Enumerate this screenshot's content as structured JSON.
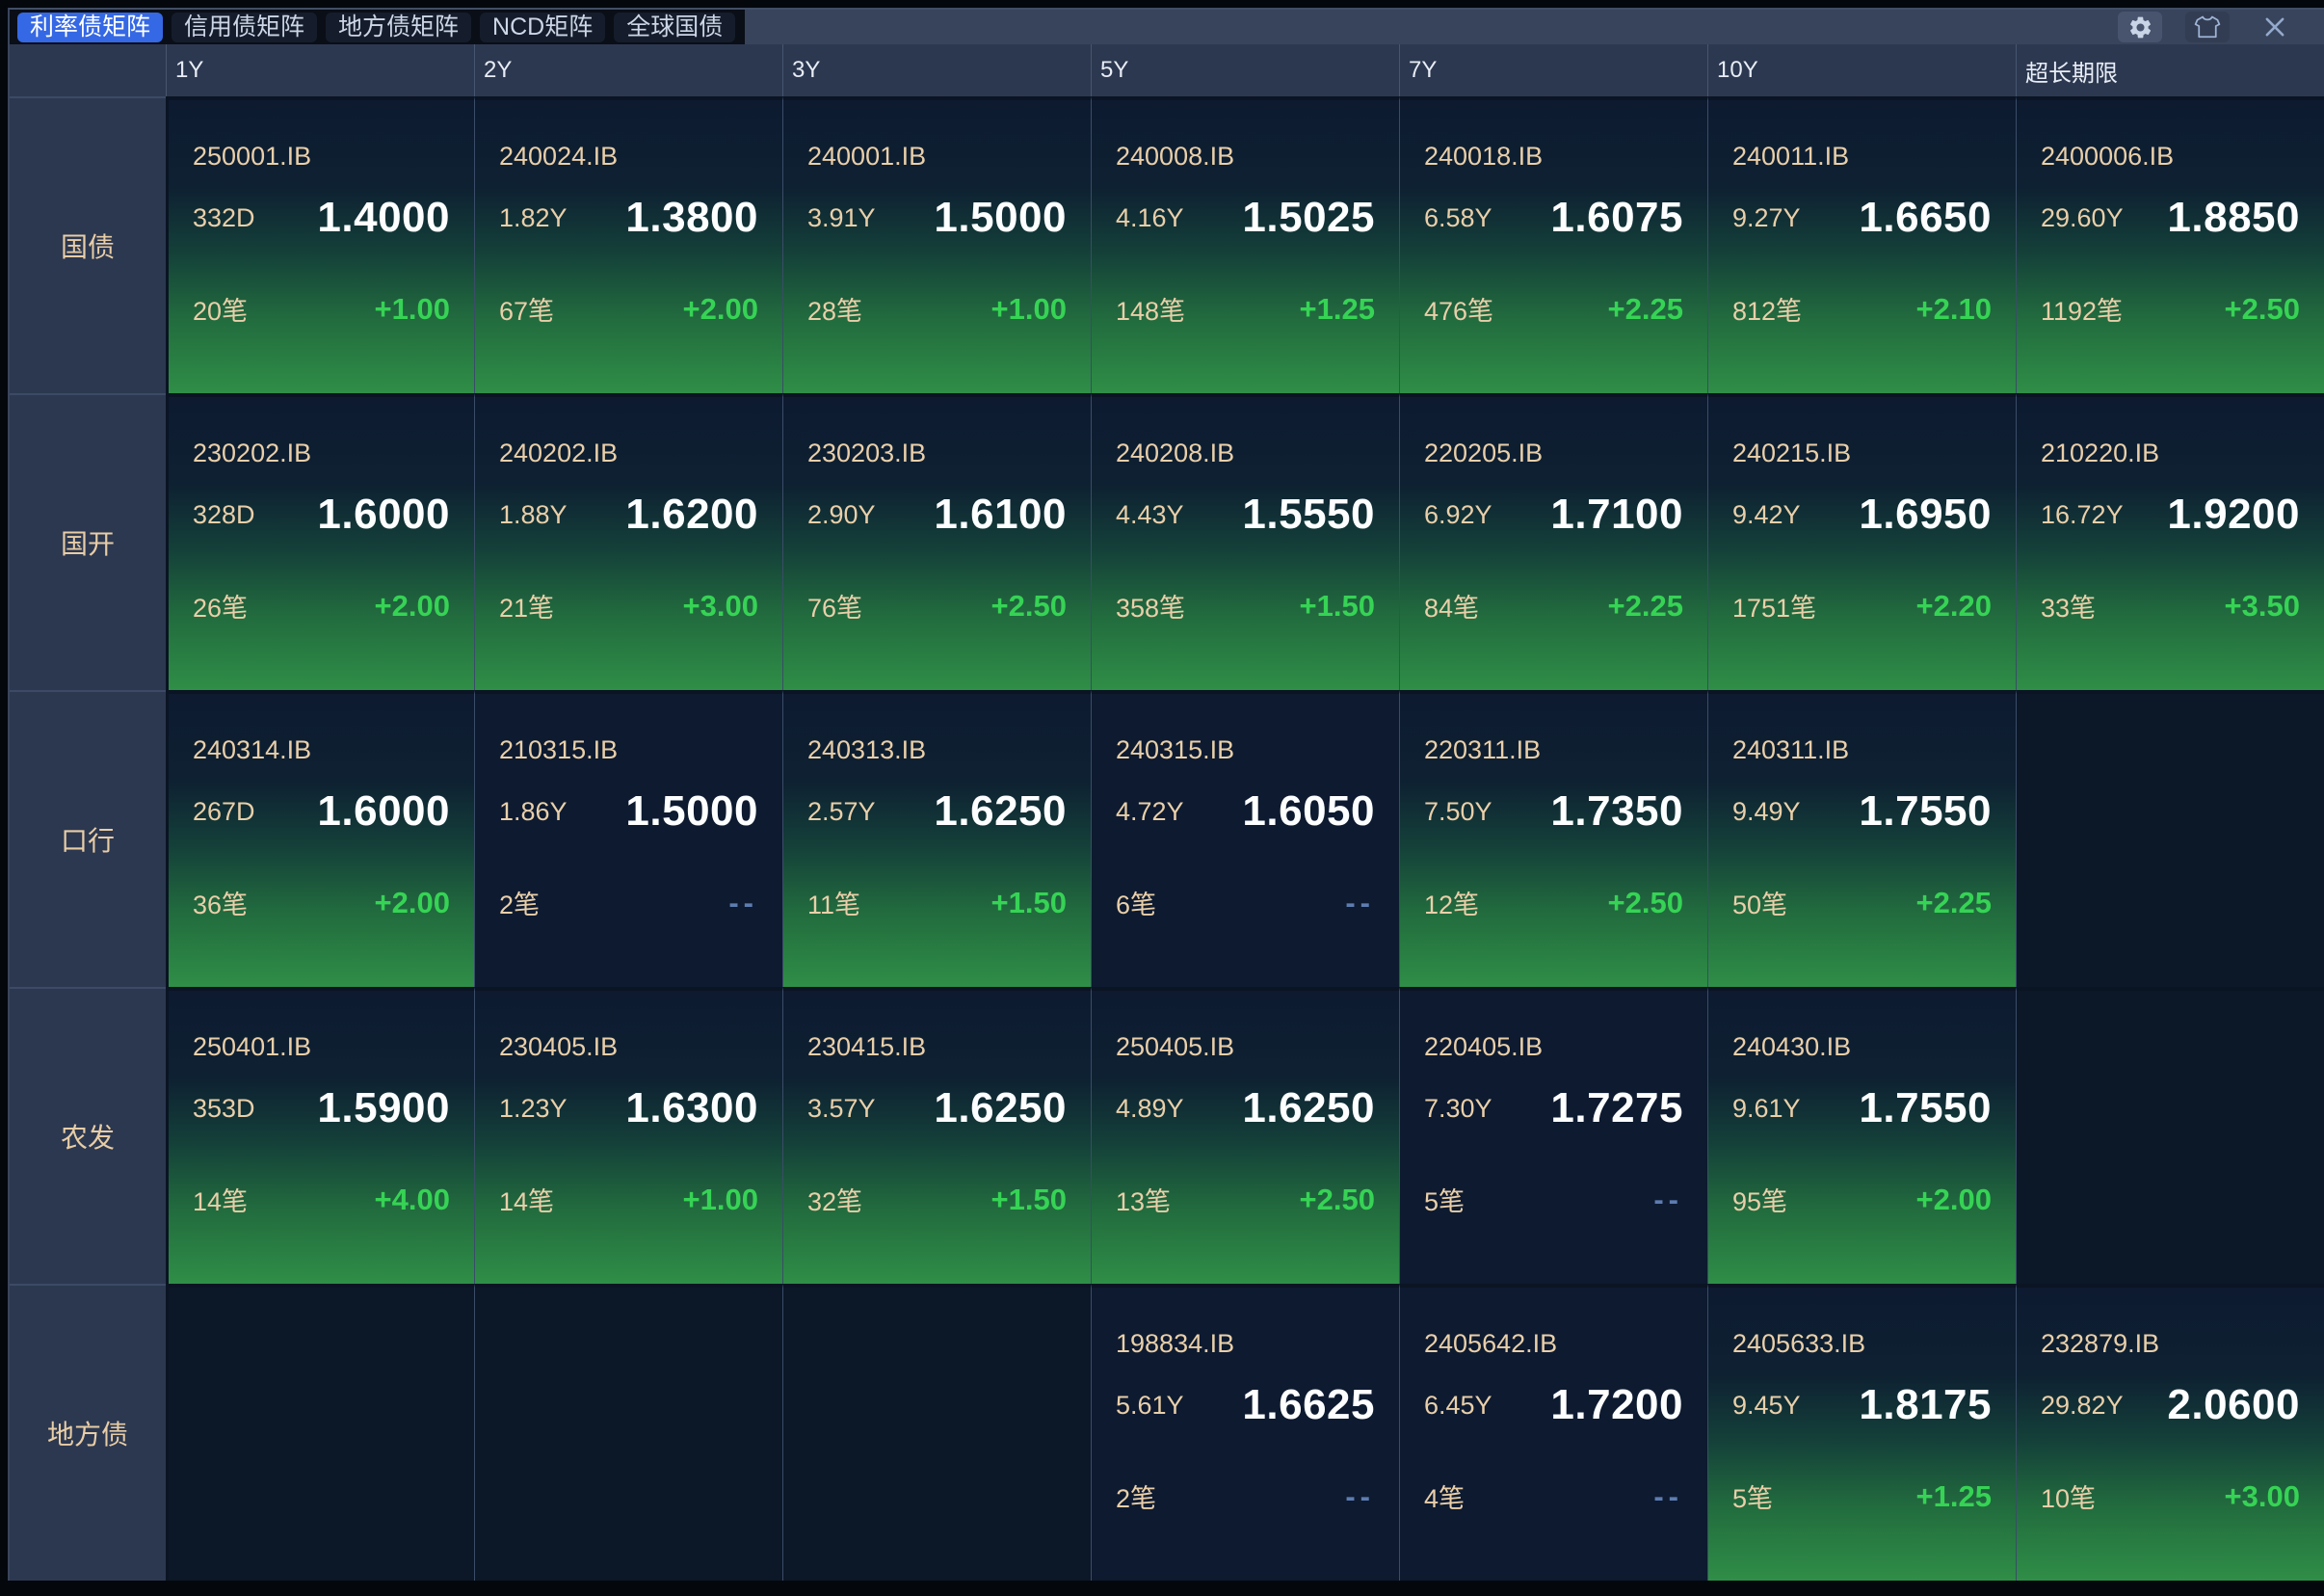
{
  "tabs": [
    {
      "label": "利率债矩阵",
      "active": true
    },
    {
      "label": "信用债矩阵",
      "active": false
    },
    {
      "label": "地方债矩阵",
      "active": false
    },
    {
      "label": "NCD矩阵",
      "active": false
    },
    {
      "label": "全球国债",
      "active": false
    }
  ],
  "toolbar": {
    "icons": [
      "settings",
      "theme",
      "close"
    ]
  },
  "colors": {
    "tab_active_blue": "#3568e4",
    "cell_top_navy": "#0d1a30",
    "cell_bottom_green": "#2f8e47",
    "up_green": "#36d355",
    "text_cream": "#e9cfa9",
    "dash_muted": "#5d7cb0",
    "header_slate": "#2c3850"
  },
  "matrix": {
    "columns": [
      {
        "key": "1y",
        "label": "1Y"
      },
      {
        "key": "2y",
        "label": "2Y"
      },
      {
        "key": "3y",
        "label": "3Y"
      },
      {
        "key": "5y",
        "label": "5Y"
      },
      {
        "key": "7y",
        "label": "7Y"
      },
      {
        "key": "10y",
        "label": "10Y"
      },
      {
        "key": "ultra-long",
        "label": "超长期限"
      }
    ],
    "rows": [
      {
        "key": "treasury",
        "label": "国债",
        "cells": [
          {
            "code": "250001.IB",
            "term": "332D",
            "yield": "1.4000",
            "count": "20笔",
            "change": "+1.00"
          },
          {
            "code": "240024.IB",
            "term": "1.82Y",
            "yield": "1.3800",
            "count": "67笔",
            "change": "+2.00"
          },
          {
            "code": "240001.IB",
            "term": "3.91Y",
            "yield": "1.5000",
            "count": "28笔",
            "change": "+1.00"
          },
          {
            "code": "240008.IB",
            "term": "4.16Y",
            "yield": "1.5025",
            "count": "148笔",
            "change": "+1.25"
          },
          {
            "code": "240018.IB",
            "term": "6.58Y",
            "yield": "1.6075",
            "count": "476笔",
            "change": "+2.25"
          },
          {
            "code": "240011.IB",
            "term": "9.27Y",
            "yield": "1.6650",
            "count": "812笔",
            "change": "+2.10"
          },
          {
            "code": "2400006.IB",
            "term": "29.60Y",
            "yield": "1.8850",
            "count": "1192笔",
            "change": "+2.50"
          }
        ]
      },
      {
        "key": "cdb",
        "label": "国开",
        "cells": [
          {
            "code": "230202.IB",
            "term": "328D",
            "yield": "1.6000",
            "count": "26笔",
            "change": "+2.00"
          },
          {
            "code": "240202.IB",
            "term": "1.88Y",
            "yield": "1.6200",
            "count": "21笔",
            "change": "+3.00"
          },
          {
            "code": "230203.IB",
            "term": "2.90Y",
            "yield": "1.6100",
            "count": "76笔",
            "change": "+2.50"
          },
          {
            "code": "240208.IB",
            "term": "4.43Y",
            "yield": "1.5550",
            "count": "358笔",
            "change": "+1.50"
          },
          {
            "code": "220205.IB",
            "term": "6.92Y",
            "yield": "1.7100",
            "count": "84笔",
            "change": "+2.25"
          },
          {
            "code": "240215.IB",
            "term": "9.42Y",
            "yield": "1.6950",
            "count": "1751笔",
            "change": "+2.20"
          },
          {
            "code": "210220.IB",
            "term": "16.72Y",
            "yield": "1.9200",
            "count": "33笔",
            "change": "+3.50"
          }
        ]
      },
      {
        "key": "exim",
        "label": "口行",
        "cells": [
          {
            "code": "240314.IB",
            "term": "267D",
            "yield": "1.6000",
            "count": "36笔",
            "change": "+2.00"
          },
          {
            "code": "210315.IB",
            "term": "1.86Y",
            "yield": "1.5000",
            "count": "2笔",
            "change": "--"
          },
          {
            "code": "240313.IB",
            "term": "2.57Y",
            "yield": "1.6250",
            "count": "11笔",
            "change": "+1.50"
          },
          {
            "code": "240315.IB",
            "term": "4.72Y",
            "yield": "1.6050",
            "count": "6笔",
            "change": "--"
          },
          {
            "code": "220311.IB",
            "term": "7.50Y",
            "yield": "1.7350",
            "count": "12笔",
            "change": "+2.50"
          },
          {
            "code": "240311.IB",
            "term": "9.49Y",
            "yield": "1.7550",
            "count": "50笔",
            "change": "+2.25"
          },
          null
        ]
      },
      {
        "key": "adbc",
        "label": "农发",
        "cells": [
          {
            "code": "250401.IB",
            "term": "353D",
            "yield": "1.5900",
            "count": "14笔",
            "change": "+4.00"
          },
          {
            "code": "230405.IB",
            "term": "1.23Y",
            "yield": "1.6300",
            "count": "14笔",
            "change": "+1.00"
          },
          {
            "code": "230415.IB",
            "term": "3.57Y",
            "yield": "1.6250",
            "count": "32笔",
            "change": "+1.50"
          },
          {
            "code": "250405.IB",
            "term": "4.89Y",
            "yield": "1.6250",
            "count": "13笔",
            "change": "+2.50"
          },
          {
            "code": "220405.IB",
            "term": "7.30Y",
            "yield": "1.7275",
            "count": "5笔",
            "change": "--"
          },
          {
            "code": "240430.IB",
            "term": "9.61Y",
            "yield": "1.7550",
            "count": "95笔",
            "change": "+2.00"
          },
          null
        ]
      },
      {
        "key": "lgb",
        "label": "地方债",
        "cells": [
          null,
          null,
          null,
          {
            "code": "198834.IB",
            "term": "5.61Y",
            "yield": "1.6625",
            "count": "2笔",
            "change": "--"
          },
          {
            "code": "2405642.IB",
            "term": "6.45Y",
            "yield": "1.7200",
            "count": "4笔",
            "change": "--"
          },
          {
            "code": "2405633.IB",
            "term": "9.45Y",
            "yield": "1.8175",
            "count": "5笔",
            "change": "+1.25"
          },
          {
            "code": "232879.IB",
            "term": "29.82Y",
            "yield": "2.0600",
            "count": "10笔",
            "change": "+3.00"
          }
        ]
      }
    ]
  }
}
